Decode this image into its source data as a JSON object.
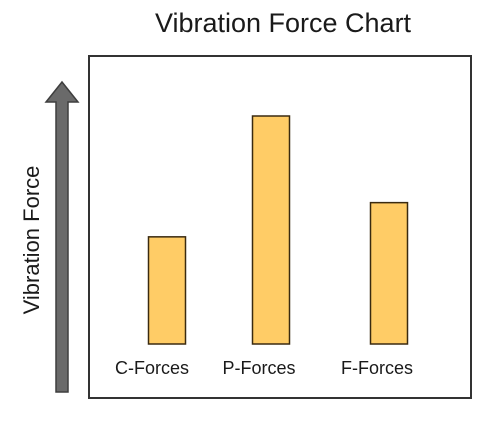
{
  "chart_data": {
    "type": "bar",
    "title": "Vibration Force Chart",
    "xlabel": "",
    "ylabel": "Vibration Force",
    "categories": [
      "C-Forces",
      "P-Forces",
      "F-Forces"
    ],
    "values": [
      47,
      100,
      62
    ],
    "ylim": [
      0,
      100
    ],
    "grid": false,
    "legend": "none",
    "colors": {
      "bar_fill": "#ffcc66",
      "bar_stroke": "#3a2a10",
      "arrow": "#6a6a6a",
      "frame": "#333333"
    }
  }
}
